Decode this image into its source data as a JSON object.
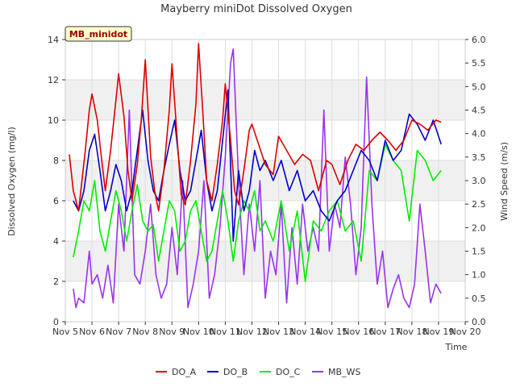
{
  "chart_data": {
    "type": "line",
    "title": "Mayberry miniDot Dissolved Oxygen",
    "badge": "MB_minidot",
    "xlabel": "Time",
    "ylabel": "Dissolved Oxygen (mg/l)",
    "y2label": "Wind Speed (m/s)",
    "xlim": [
      5,
      20
    ],
    "ylim": [
      0,
      14
    ],
    "y2lim": [
      0,
      6
    ],
    "x_ticks": [
      5,
      6,
      7,
      8,
      9,
      10,
      11,
      12,
      13,
      14,
      15,
      16,
      17,
      18,
      19,
      20
    ],
    "x_tick_labels": [
      "Nov 5",
      "Nov 6",
      "Nov 7",
      "Nov 8",
      "Nov 9",
      "Nov 10",
      "Nov 11",
      "Nov 12",
      "Nov 13",
      "Nov 14",
      "Nov 15",
      "Nov 16",
      "Nov 17",
      "Nov 18",
      "Nov 19",
      "Nov 20"
    ],
    "y_ticks": [
      0,
      2,
      4,
      6,
      8,
      10,
      12,
      14
    ],
    "y_tick_labels": [
      "0",
      "2",
      "4",
      "6",
      "8",
      "10",
      "12",
      "14"
    ],
    "y2_ticks": [
      0,
      0.5,
      1,
      1.5,
      2,
      2.5,
      3,
      3.5,
      4,
      4.5,
      5,
      5.5,
      6
    ],
    "y2_tick_labels": [
      "0.0",
      "0.5",
      "1.0",
      "1.5",
      "2.0",
      "2.5",
      "3.0",
      "3.5",
      "4.0",
      "4.5",
      "5.0",
      "5.5",
      "6.0"
    ],
    "grid": "horizontal bands",
    "legend_position": "bottom",
    "series": [
      {
        "name": "DO_A",
        "color": "#dd0000",
        "axis": "left",
        "x": [
          5.15,
          5.3,
          5.5,
          5.75,
          5.9,
          6.0,
          6.2,
          6.35,
          6.5,
          6.7,
          6.9,
          7.0,
          7.2,
          7.35,
          7.5,
          7.7,
          7.85,
          8.0,
          8.2,
          8.35,
          8.5,
          8.7,
          8.9,
          9.0,
          9.2,
          9.35,
          9.5,
          9.7,
          9.9,
          10.0,
          10.2,
          10.3,
          10.5,
          10.7,
          10.9,
          11.0,
          11.2,
          11.35,
          11.5,
          11.7,
          11.9,
          12.0,
          12.2,
          12.5,
          12.8,
          13.0,
          13.3,
          13.6,
          13.9,
          14.2,
          14.5,
          14.8,
          15.0,
          15.3,
          15.6,
          15.9,
          16.2,
          16.5,
          16.8,
          17.1,
          17.4,
          17.7,
          18.0,
          18.3,
          18.6,
          18.9,
          19.1
        ],
        "y": [
          8.3,
          6.5,
          5.5,
          8.5,
          10.5,
          11.3,
          10.0,
          8.2,
          6.5,
          8.5,
          11.0,
          12.3,
          10.2,
          7.5,
          6.0,
          7.8,
          10.0,
          13.0,
          8.2,
          6.5,
          5.5,
          7.5,
          10.5,
          12.8,
          9.0,
          6.3,
          5.8,
          8.0,
          10.8,
          13.8,
          9.5,
          7.0,
          6.0,
          7.8,
          10.0,
          11.8,
          9.0,
          6.5,
          5.8,
          7.5,
          9.5,
          9.8,
          9.0,
          7.8,
          7.3,
          9.2,
          8.5,
          7.8,
          8.3,
          8.0,
          6.5,
          8.0,
          7.8,
          6.8,
          8.0,
          8.8,
          8.5,
          9.0,
          9.4,
          9.0,
          8.5,
          9.0,
          10.0,
          9.8,
          9.5,
          10.0,
          9.9
        ]
      },
      {
        "name": "DO_B",
        "color": "#0000cc",
        "axis": "left",
        "x": [
          5.3,
          5.5,
          5.7,
          5.9,
          6.1,
          6.3,
          6.5,
          6.7,
          6.9,
          7.1,
          7.3,
          7.5,
          7.7,
          7.9,
          8.1,
          8.3,
          8.5,
          8.7,
          8.9,
          9.1,
          9.3,
          9.5,
          9.7,
          9.9,
          10.1,
          10.3,
          10.5,
          10.7,
          10.9,
          11.1,
          11.3,
          11.5,
          11.7,
          11.9,
          12.1,
          12.3,
          12.5,
          12.8,
          13.1,
          13.4,
          13.7,
          14.0,
          14.3,
          14.6,
          14.9,
          15.2,
          15.5,
          15.8,
          16.1,
          16.4,
          16.7,
          17.0,
          17.3,
          17.6,
          17.9,
          18.2,
          18.5,
          18.8,
          19.1
        ],
        "y": [
          6.0,
          5.5,
          6.5,
          8.5,
          9.3,
          7.5,
          5.5,
          6.5,
          7.8,
          7.0,
          5.5,
          6.5,
          8.5,
          10.5,
          8.0,
          6.5,
          6.0,
          7.5,
          8.8,
          10.0,
          7.5,
          6.0,
          6.5,
          8.0,
          9.5,
          7.0,
          5.5,
          6.5,
          9.0,
          11.5,
          4.0,
          7.5,
          5.5,
          6.5,
          8.5,
          7.5,
          8.0,
          7.0,
          8.0,
          6.5,
          7.5,
          6.0,
          6.5,
          5.5,
          5.0,
          6.0,
          6.5,
          7.5,
          8.5,
          8.0,
          7.0,
          9.0,
          8.0,
          8.5,
          10.3,
          9.8,
          9.0,
          10.0,
          8.8
        ]
      },
      {
        "name": "DO_C",
        "color": "#00ee00",
        "axis": "left",
        "x": [
          5.3,
          5.5,
          5.7,
          5.9,
          6.1,
          6.3,
          6.5,
          6.7,
          6.9,
          7.1,
          7.3,
          7.5,
          7.7,
          7.9,
          8.1,
          8.3,
          8.5,
          8.7,
          8.9,
          9.1,
          9.3,
          9.5,
          9.7,
          9.9,
          10.1,
          10.3,
          10.5,
          10.7,
          10.9,
          11.1,
          11.3,
          11.5,
          11.7,
          11.9,
          12.1,
          12.3,
          12.5,
          12.8,
          13.1,
          13.4,
          13.7,
          14.0,
          14.3,
          14.6,
          14.9,
          15.2,
          15.5,
          15.8,
          16.1,
          16.4,
          16.7,
          17.0,
          17.3,
          17.6,
          17.9,
          18.2,
          18.5,
          18.8,
          19.1
        ],
        "y": [
          3.2,
          4.5,
          6.0,
          5.5,
          7.0,
          4.5,
          3.5,
          5.0,
          6.5,
          5.5,
          4.0,
          5.5,
          6.8,
          5.0,
          4.5,
          4.8,
          3.0,
          4.5,
          6.0,
          5.5,
          3.5,
          4.0,
          5.5,
          6.0,
          4.5,
          3.0,
          3.5,
          5.0,
          6.5,
          5.0,
          3.0,
          5.0,
          6.0,
          5.5,
          6.5,
          4.5,
          5.0,
          4.0,
          6.0,
          3.5,
          5.5,
          2.0,
          5.0,
          4.5,
          5.5,
          6.0,
          4.5,
          5.0,
          3.0,
          7.5,
          7.0,
          8.8,
          8.0,
          7.5,
          5.0,
          8.5,
          8.0,
          7.0,
          7.5
        ]
      },
      {
        "name": "MB_WS",
        "color": "#9933ee",
        "axis": "right",
        "x": [
          5.3,
          5.4,
          5.5,
          5.7,
          5.9,
          6.0,
          6.2,
          6.4,
          6.6,
          6.8,
          7.0,
          7.2,
          7.4,
          7.6,
          7.8,
          8.0,
          8.2,
          8.4,
          8.6,
          8.8,
          9.0,
          9.2,
          9.4,
          9.6,
          9.8,
          10.0,
          10.2,
          10.4,
          10.6,
          10.8,
          11.0,
          11.2,
          11.3,
          11.5,
          11.7,
          11.9,
          12.1,
          12.3,
          12.5,
          12.7,
          12.9,
          13.1,
          13.3,
          13.5,
          13.7,
          13.9,
          14.1,
          14.3,
          14.5,
          14.7,
          14.9,
          15.1,
          15.3,
          15.5,
          15.7,
          15.9,
          16.1,
          16.3,
          16.5,
          16.7,
          16.9,
          17.1,
          17.3,
          17.5,
          17.7,
          17.9,
          18.1,
          18.3,
          18.5,
          18.7,
          18.9,
          19.1
        ],
        "y": [
          0.7,
          0.3,
          0.5,
          0.4,
          1.5,
          0.8,
          1.0,
          0.5,
          1.2,
          0.4,
          2.5,
          1.5,
          4.5,
          1.0,
          0.8,
          1.5,
          2.5,
          1.0,
          0.5,
          0.8,
          2.0,
          1.0,
          3.0,
          0.3,
          0.8,
          1.5,
          3.0,
          0.5,
          1.0,
          2.0,
          3.5,
          5.5,
          5.8,
          3.0,
          1.0,
          2.5,
          1.5,
          3.0,
          0.5,
          1.5,
          1.0,
          2.5,
          0.4,
          2.0,
          0.8,
          2.5,
          1.5,
          2.0,
          1.5,
          4.5,
          1.5,
          2.5,
          2.0,
          3.5,
          2.5,
          1.0,
          2.0,
          5.2,
          2.5,
          0.8,
          1.5,
          0.3,
          0.7,
          1.0,
          0.5,
          0.3,
          0.8,
          2.5,
          1.5,
          0.4,
          0.8,
          0.6
        ]
      }
    ]
  }
}
